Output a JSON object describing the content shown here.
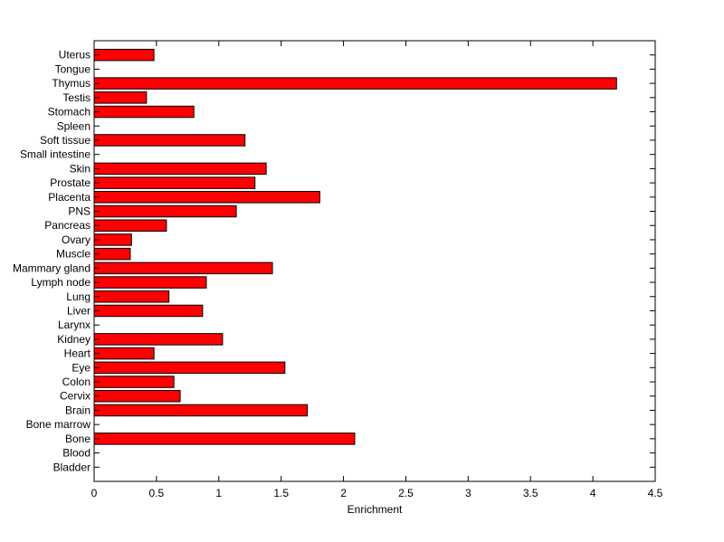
{
  "chart_data": {
    "type": "bar",
    "orientation": "horizontal",
    "categories": [
      "Bladder",
      "Blood",
      "Bone",
      "Bone marrow",
      "Brain",
      "Cervix",
      "Colon",
      "Eye",
      "Heart",
      "Kidney",
      "Larynx",
      "Liver",
      "Lung",
      "Lymph node",
      "Mammary gland",
      "Muscle",
      "Ovary",
      "Pancreas",
      "PNS",
      "Placenta",
      "Prostate",
      "Skin",
      "Small intestine",
      "Soft tissue",
      "Spleen",
      "Stomach",
      "Testis",
      "Thymus",
      "Tongue",
      "Uterus"
    ],
    "values": [
      0,
      0,
      2.09,
      0,
      1.71,
      0.69,
      0.64,
      1.53,
      0.48,
      1.03,
      0,
      0.87,
      0.6,
      0.9,
      1.43,
      0.29,
      0.3,
      0.58,
      1.14,
      1.81,
      1.29,
      1.38,
      0,
      1.21,
      0,
      0.8,
      0.42,
      4.19,
      0,
      0.48
    ],
    "xlabel": "Enrichment",
    "ylabel": "",
    "title": "",
    "xlim": [
      0,
      4.5
    ],
    "xticks": [
      0,
      0.5,
      1,
      1.5,
      2,
      2.5,
      3,
      3.5,
      4,
      4.5
    ],
    "xtick_labels": [
      "0",
      "0.5",
      "1",
      "1.5",
      "2",
      "2.5",
      "3",
      "3.5",
      "4",
      "4.5"
    ],
    "grid": false,
    "legend": "none",
    "bar_color": "#ff0000",
    "edge_color": "#000000"
  }
}
